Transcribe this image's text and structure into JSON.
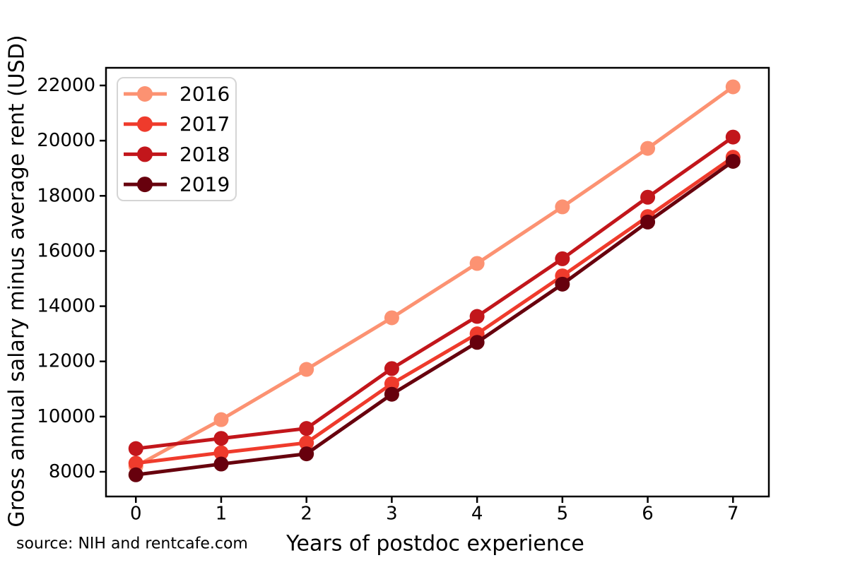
{
  "chart_data": {
    "type": "line",
    "title": "",
    "xlabel": "Years of postdoc experience",
    "ylabel": "Gross annual salary minus average rent (USD)",
    "source_note": "source: NIH and rentcafe.com",
    "x": [
      0,
      1,
      2,
      3,
      4,
      5,
      6,
      7
    ],
    "x_ticks": [
      "0",
      "1",
      "2",
      "3",
      "4",
      "5",
      "6",
      "7"
    ],
    "y_ticks": [
      8000,
      10000,
      12000,
      14000,
      16000,
      18000,
      20000,
      22000
    ],
    "xlim": [
      -0.35,
      7.42
    ],
    "ylim": [
      7104,
      22640
    ],
    "grid": false,
    "legend_position": "upper left",
    "marker": "circle",
    "series": [
      {
        "name": "2016",
        "color": "#fc9272",
        "values": [
          8200,
          9890,
          11710,
          13580,
          15550,
          17600,
          19720,
          21950
        ]
      },
      {
        "name": "2017",
        "color": "#ef3b2c",
        "values": [
          8310,
          8690,
          9050,
          11190,
          13000,
          15100,
          17250,
          19400
        ]
      },
      {
        "name": "2018",
        "color": "#c2161b",
        "values": [
          8840,
          9210,
          9570,
          11740,
          13630,
          15720,
          17950,
          20130
        ]
      },
      {
        "name": "2019",
        "color": "#67000d",
        "values": [
          7890,
          8280,
          8650,
          10810,
          12690,
          14800,
          17050,
          19250
        ]
      }
    ],
    "axis_color": "#000000",
    "background_color": "#ffffff",
    "legend_border_color": "#d5d5d5"
  }
}
